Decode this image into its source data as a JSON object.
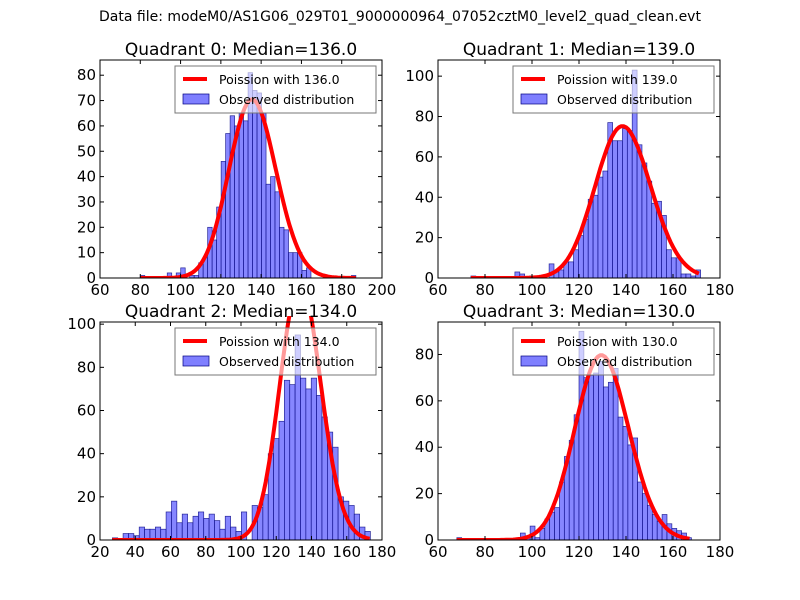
{
  "suptitle": "Data file: modeM0/AS1G06_029T01_9000000964_07052cztM0_level2_quad_clean.evt",
  "colors": {
    "hist_fill": "#7f7fff",
    "hist_edge": "#000080",
    "poisson_line": "#ff0000"
  },
  "legend": {
    "observed_label": "Observed distribution",
    "poisson_prefix": "Poission with "
  },
  "chart_data": [
    {
      "type": "bar",
      "title": "Quadrant 0: Median=136.0",
      "median": 136.0,
      "poisson_label": "Poission with 136.0",
      "xlim": [
        60,
        200
      ],
      "ylim": [
        0,
        86
      ],
      "xticks": [
        60,
        80,
        100,
        120,
        140,
        160,
        180,
        200
      ],
      "yticks": [
        0,
        10,
        20,
        30,
        40,
        50,
        60,
        70,
        80
      ],
      "bins_start": 80,
      "bin_width": 2.23,
      "counts": [
        1,
        0,
        0,
        0,
        0,
        0,
        2,
        0,
        2,
        4,
        0,
        1,
        1,
        6,
        8,
        20,
        15,
        28,
        46,
        57,
        64,
        60,
        65,
        62,
        81,
        74,
        73,
        65,
        37,
        40,
        34,
        20,
        19,
        10,
        10,
        10,
        3,
        4,
        0,
        0,
        0,
        0,
        0,
        0,
        0,
        0,
        0,
        1
      ],
      "legend_position": "upper-right"
    },
    {
      "type": "bar",
      "title": "Quadrant 1: Median=139.0",
      "median": 139.0,
      "poisson_label": "Poission with 139.0",
      "xlim": [
        60,
        180
      ],
      "ylim": [
        0,
        108
      ],
      "xticks": [
        60,
        80,
        100,
        120,
        140,
        160,
        180
      ],
      "yticks": [
        0,
        20,
        40,
        60,
        80,
        100
      ],
      "bins_start": 74,
      "bin_width": 2.08,
      "counts": [
        1,
        0,
        0,
        0,
        0,
        0,
        0,
        0,
        0,
        3,
        2,
        0,
        1,
        1,
        1,
        0,
        7,
        3,
        4,
        8,
        8,
        14,
        21,
        29,
        39,
        41,
        50,
        53,
        77,
        68,
        68,
        74,
        73,
        103,
        66,
        57,
        48,
        37,
        38,
        31,
        14,
        10,
        10,
        2,
        2,
        1,
        4
      ],
      "legend_position": "upper-right"
    },
    {
      "type": "bar",
      "title": "Quadrant 2: Median=134.0",
      "median": 134.0,
      "poisson_label": "Poission with 134.0",
      "xlim": [
        20,
        180
      ],
      "ylim": [
        0,
        101
      ],
      "xticks": [
        20,
        40,
        60,
        80,
        100,
        120,
        140,
        160,
        180
      ],
      "yticks": [
        0,
        20,
        40,
        60,
        80,
        100
      ],
      "bins_start": 27,
      "bin_width": 3.05,
      "counts": [
        1,
        0,
        3,
        3,
        2,
        6,
        5,
        5,
        6,
        5,
        13,
        18,
        8,
        12,
        8,
        11,
        13,
        10,
        12,
        9,
        5,
        11,
        6,
        4,
        13,
        0,
        16,
        15,
        21,
        40,
        47,
        55,
        74,
        72,
        95,
        75,
        70,
        75,
        67,
        57,
        50,
        43,
        20,
        18,
        16,
        12,
        6,
        4
      ],
      "legend_position": "upper-right"
    },
    {
      "type": "bar",
      "title": "Quadrant 3: Median=130.0",
      "median": 130.0,
      "poisson_label": "Poission with 130.0",
      "xlim": [
        60,
        180
      ],
      "ylim": [
        0,
        94
      ],
      "xticks": [
        60,
        80,
        100,
        120,
        140,
        160,
        180
      ],
      "yticks": [
        0,
        20,
        40,
        60,
        80
      ],
      "bins_start": 68,
      "bin_width": 2.08,
      "counts": [
        1,
        0,
        0,
        0,
        0,
        0,
        0,
        0,
        0,
        0,
        0,
        0,
        0,
        3,
        1,
        6,
        1,
        5,
        9,
        12,
        14,
        25,
        36,
        43,
        54,
        90,
        70,
        71,
        72,
        77,
        66,
        68,
        74,
        53,
        49,
        41,
        44,
        25,
        20,
        15,
        11,
        8,
        11,
        7,
        5,
        4,
        3,
        1
      ],
      "legend_position": "upper-right"
    }
  ]
}
